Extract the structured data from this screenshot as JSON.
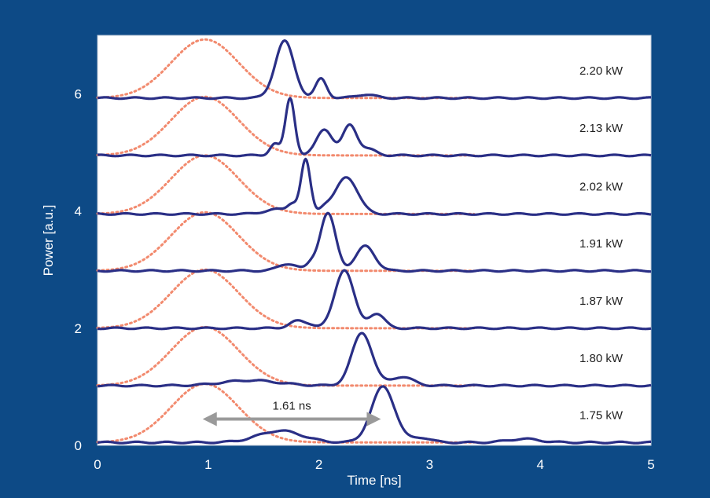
{
  "chart_data": {
    "type": "line",
    "title": "",
    "xlabel": "Time [ns]",
    "ylabel": "Power [a.u.]",
    "xlim": [
      0,
      5
    ],
    "ylim": [
      0,
      7
    ],
    "xticks": [
      "0",
      "1",
      "2",
      "3",
      "4",
      "5"
    ],
    "yticks": [
      "0",
      "2",
      "4",
      "6"
    ],
    "grid": false,
    "colors": {
      "background": "#0d4a86",
      "plot_area": "#ffffff",
      "output_trace": "#2a2f86",
      "input_trace": "#f28a6e",
      "arrow": "#9a9a9a"
    },
    "series": [
      {
        "name": "2.20 kW",
        "offset": 5.93,
        "peaks": [
          [
            1.69,
            0.12,
            0.97
          ],
          [
            2.02,
            0.07,
            0.33
          ],
          [
            2.42,
            0.12,
            0.06
          ]
        ]
      },
      {
        "name": "2.13 kW",
        "offset": 4.95,
        "peaks": [
          [
            1.6,
            0.06,
            0.2
          ],
          [
            1.74,
            0.06,
            0.98
          ],
          [
            2.05,
            0.1,
            0.45
          ],
          [
            2.28,
            0.09,
            0.52
          ],
          [
            2.45,
            0.1,
            0.1
          ]
        ]
      },
      {
        "name": "2.02 kW",
        "offset": 3.95,
        "peaks": [
          [
            1.62,
            0.15,
            0.08
          ],
          [
            1.76,
            0.06,
            0.15
          ],
          [
            1.88,
            0.06,
            0.92
          ],
          [
            2.25,
            0.14,
            0.63
          ],
          [
            2.05,
            0.07,
            0.1
          ]
        ]
      },
      {
        "name": "1.91 kW",
        "offset": 2.98,
        "peaks": [
          [
            1.72,
            0.12,
            0.12
          ],
          [
            2.08,
            0.1,
            0.98
          ],
          [
            2.42,
            0.12,
            0.42
          ],
          [
            1.93,
            0.06,
            0.1
          ]
        ]
      },
      {
        "name": "1.87 kW",
        "offset": 2.0,
        "peaks": [
          [
            1.8,
            0.1,
            0.12
          ],
          [
            2.23,
            0.12,
            1.0
          ],
          [
            2.52,
            0.1,
            0.25
          ],
          [
            1.93,
            0.08,
            0.05
          ]
        ]
      },
      {
        "name": "1.80 kW",
        "offset": 1.02,
        "peaks": [
          [
            1.38,
            0.35,
            0.09
          ],
          [
            2.39,
            0.13,
            0.9
          ],
          [
            2.75,
            0.14,
            0.15
          ]
        ]
      },
      {
        "name": "1.75 kW",
        "offset": 0.05,
        "peaks": [
          [
            1.65,
            0.28,
            0.2
          ],
          [
            2.58,
            0.15,
            0.95
          ],
          [
            2.93,
            0.12,
            0.08
          ],
          [
            3.85,
            0.2,
            0.06
          ]
        ]
      }
    ],
    "input_pulse": {
      "center": 0.97,
      "width": 0.43,
      "amplitude": 1.0
    },
    "annotation": {
      "text": "1.61 ns",
      "x_start": 0.95,
      "x_end": 2.56,
      "y": 0.45
    }
  }
}
